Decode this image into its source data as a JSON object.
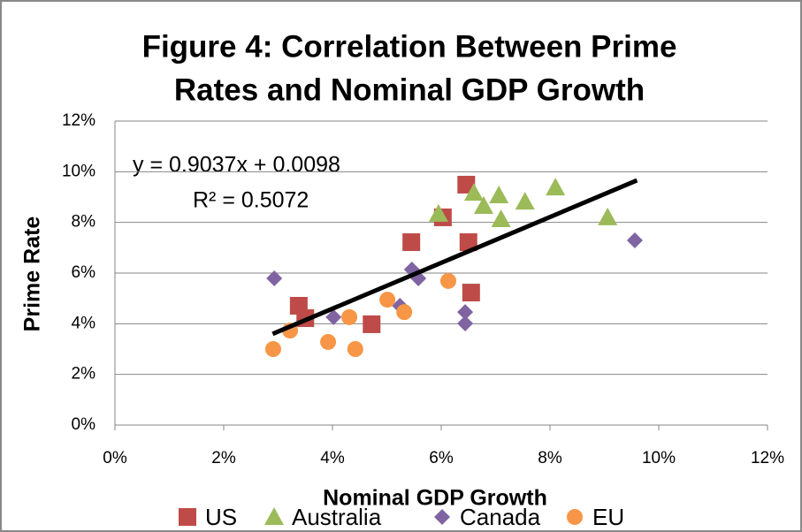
{
  "chart_data": {
    "type": "scatter",
    "title": [
      "Figure 4: Correlation Between Prime",
      "Rates and Nominal GDP Growth"
    ],
    "x_label": "Nominal GDP Growth",
    "y_label": "Prime Rate",
    "annotations": [
      "y = 0.9037x + 0.0098",
      "R² = 0.5072"
    ],
    "xlim": [
      0,
      12
    ],
    "ylim": [
      0,
      12
    ],
    "xticks": [
      {
        "value": 0,
        "label": "0%"
      },
      {
        "value": 2,
        "label": "2%"
      },
      {
        "value": 4,
        "label": "4%"
      },
      {
        "value": 6,
        "label": "6%"
      },
      {
        "value": 8,
        "label": "8%"
      },
      {
        "value": 10,
        "label": "10%"
      },
      {
        "value": 12,
        "label": "12%"
      }
    ],
    "yticks": [
      {
        "value": 0,
        "label": "0%"
      },
      {
        "value": 2,
        "label": "2%"
      },
      {
        "value": 4,
        "label": "4%"
      },
      {
        "value": 6,
        "label": "6%"
      },
      {
        "value": 8,
        "label": "8%"
      },
      {
        "value": 10,
        "label": "10%"
      },
      {
        "value": 12,
        "label": "12%"
      }
    ],
    "grid": true,
    "legend": "bottom",
    "series": [
      {
        "name": "US",
        "color": "#be4b48",
        "marker": "square",
        "x": [
          6.46,
          6.03,
          5.45,
          6.5,
          6.55,
          3.38,
          3.5,
          4.72
        ],
        "values": [
          9.49,
          8.2,
          7.22,
          7.22,
          5.23,
          4.71,
          4.22,
          3.98
        ]
      },
      {
        "name": "Australia",
        "color": "#9bbb59",
        "marker": "triangle",
        "x": [
          5.95,
          6.6,
          6.78,
          7.06,
          7.1,
          7.54,
          8.1,
          9.06
        ],
        "values": [
          8.34,
          9.17,
          8.65,
          9.07,
          8.13,
          8.82,
          9.38,
          8.2
        ]
      },
      {
        "name": "Canada",
        "color": "#8064a2",
        "marker": "diamond",
        "x": [
          2.93,
          5.46,
          5.58,
          4.02,
          5.24,
          6.44,
          6.44,
          9.56
        ],
        "values": [
          5.79,
          6.14,
          5.79,
          4.26,
          4.71,
          4.46,
          4.01,
          7.29
        ]
      },
      {
        "name": "EU",
        "color": "#f79646",
        "marker": "circle",
        "x": [
          2.91,
          3.22,
          3.92,
          4.31,
          4.42,
          5.01,
          5.32,
          6.13
        ],
        "values": [
          3.0,
          3.73,
          3.28,
          4.26,
          3.0,
          4.95,
          4.46,
          5.69
        ]
      }
    ],
    "trendline": {
      "color": "#000000",
      "x": [
        2.9,
        9.6
      ],
      "values": [
        3.6,
        9.66
      ]
    }
  }
}
